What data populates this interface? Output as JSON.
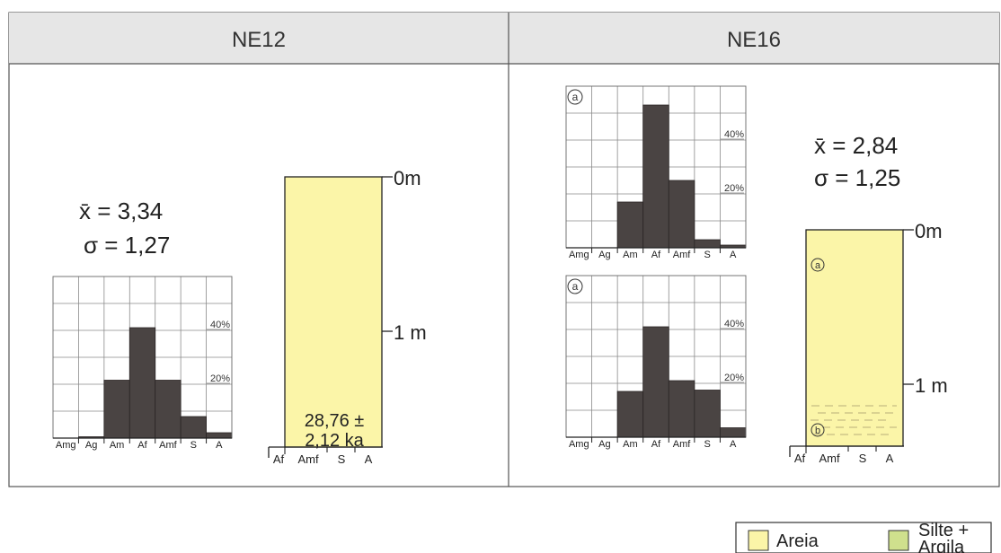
{
  "panels": [
    {
      "title": "NE12",
      "stats": {
        "mean": "x̄ = 3,34",
        "sd": "σ = 1,27"
      },
      "histograms": [
        {
          "marker": "",
          "pct_labels": [
            "40%",
            "20%"
          ]
        }
      ],
      "column": {
        "depth_labels": [
          "0m",
          "1 m"
        ],
        "xlabels": [
          "Af",
          "Amf",
          "S",
          "A"
        ],
        "sample_markers": [],
        "age_lines": [
          "28,76 ±",
          "2,12 ka"
        ]
      }
    },
    {
      "title": "NE16",
      "stats": {
        "mean": "x̄ = 2,84",
        "sd": "σ = 1,25"
      },
      "histograms": [
        {
          "marker": "a",
          "pct_labels": [
            "40%",
            "20%"
          ]
        },
        {
          "marker": "a",
          "pct_labels": [
            "40%",
            "20%"
          ]
        }
      ],
      "column": {
        "depth_labels": [
          "0m",
          "1 m"
        ],
        "xlabels": [
          "Af",
          "Amf",
          "S",
          "A"
        ],
        "sample_markers": [
          "a",
          "b"
        ],
        "age_lines": []
      }
    }
  ],
  "legend": [
    {
      "label_lines": [
        "Areia"
      ],
      "color": "#fbf5a8"
    },
    {
      "label_lines": [
        "Silte +",
        "Argila"
      ],
      "color": "#cfe08d"
    }
  ],
  "colors": {
    "bar": "#4a4443",
    "sand": "#fbf5a8",
    "silt": "#cfe08d",
    "header": "#e6e6e6",
    "grid": "#8a8a8a"
  },
  "chart_data": [
    {
      "type": "bar",
      "categories": [
        "Amg",
        "Ag",
        "Am",
        "Af",
        "Amf",
        "S",
        "A"
      ],
      "values": [
        0,
        0.5,
        21.5,
        41,
        21.5,
        8,
        2
      ],
      "ylim": [
        0,
        60
      ],
      "grid": true
    },
    {
      "type": "bar",
      "categories": [
        "Amg",
        "Ag",
        "Am",
        "Af",
        "Amf",
        "S",
        "A"
      ],
      "values": [
        0,
        0,
        17,
        53,
        25,
        3,
        1
      ],
      "ylim": [
        0,
        60
      ],
      "grid": true
    },
    {
      "type": "bar",
      "categories": [
        "Amg",
        "Ag",
        "Am",
        "Af",
        "Amf",
        "S",
        "A"
      ],
      "values": [
        0,
        0,
        17,
        41,
        21,
        17.5,
        3.5
      ],
      "ylim": [
        0,
        60
      ],
      "grid": true
    }
  ]
}
